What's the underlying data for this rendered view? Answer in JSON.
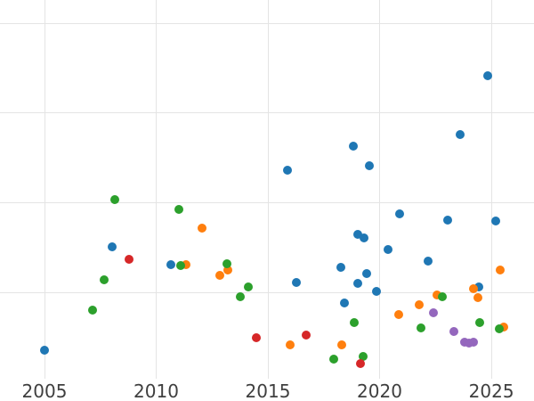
{
  "chart_data": {
    "type": "scatter",
    "title": "",
    "xlabel": "",
    "ylabel": "",
    "grid": true,
    "legend": "none",
    "x_axis": {
      "range": [
        2003.01,
        2026.91
      ],
      "ticks": [
        2005,
        2010,
        2015,
        2020,
        2025
      ],
      "tick_labels": [
        "2005",
        "2010",
        "2015",
        "2020",
        "2025"
      ]
    },
    "y_axis": {
      "range": [
        -0.004,
        4.26
      ],
      "gridline_values": [
        1,
        2,
        3,
        4
      ],
      "tick_labels_visible": false
    },
    "series": [
      {
        "name": "blue",
        "color": "#1f77b4",
        "points": [
          [
            2005.0,
            0.35
          ],
          [
            2008.03,
            1.51
          ],
          [
            2010.66,
            1.31
          ],
          [
            2015.88,
            2.36
          ],
          [
            2016.27,
            1.11
          ],
          [
            2018.27,
            1.28
          ],
          [
            2018.43,
            0.88
          ],
          [
            2018.82,
            2.63
          ],
          [
            2019.02,
            1.65
          ],
          [
            2019.3,
            1.61
          ],
          [
            2019.02,
            1.1
          ],
          [
            2019.42,
            1.21
          ],
          [
            2019.54,
            2.41
          ],
          [
            2019.86,
            1.01
          ],
          [
            2020.38,
            1.48
          ],
          [
            2020.9,
            1.88
          ],
          [
            2022.17,
            1.35
          ],
          [
            2023.05,
            1.81
          ],
          [
            2023.61,
            2.76
          ],
          [
            2024.44,
            1.06
          ],
          [
            2024.84,
            3.42
          ],
          [
            2025.2,
            1.8
          ]
        ]
      },
      {
        "name": "orange",
        "color": "#ff7f0e",
        "points": [
          [
            2011.33,
            1.31
          ],
          [
            2012.05,
            1.72
          ],
          [
            2012.85,
            1.19
          ],
          [
            2013.21,
            1.25
          ],
          [
            2016.0,
            0.41
          ],
          [
            2018.31,
            0.41
          ],
          [
            2020.86,
            0.75
          ],
          [
            2021.77,
            0.86
          ],
          [
            2022.57,
            0.97
          ],
          [
            2024.2,
            1.04
          ],
          [
            2024.4,
            0.94
          ],
          [
            2025.4,
            1.25
          ],
          [
            2025.56,
            0.61
          ]
        ]
      },
      {
        "name": "green",
        "color": "#2ca02c",
        "points": [
          [
            2007.15,
            0.8
          ],
          [
            2007.67,
            1.14
          ],
          [
            2008.15,
            2.03
          ],
          [
            2011.02,
            1.92
          ],
          [
            2011.1,
            1.3
          ],
          [
            2013.17,
            1.32
          ],
          [
            2013.76,
            0.95
          ],
          [
            2014.12,
            1.06
          ],
          [
            2017.95,
            0.25
          ],
          [
            2018.86,
            0.66
          ],
          [
            2019.26,
            0.28
          ],
          [
            2021.85,
            0.6
          ],
          [
            2022.81,
            0.95
          ],
          [
            2024.48,
            0.66
          ],
          [
            2025.36,
            0.59
          ]
        ]
      },
      {
        "name": "red",
        "color": "#d62728",
        "points": [
          [
            2008.78,
            1.37
          ],
          [
            2014.48,
            0.49
          ],
          [
            2016.71,
            0.52
          ],
          [
            2019.14,
            0.21
          ]
        ]
      },
      {
        "name": "purple",
        "color": "#9467bd",
        "points": [
          [
            2022.41,
            0.77
          ],
          [
            2023.33,
            0.56
          ],
          [
            2023.8,
            0.44
          ],
          [
            2024.0,
            0.43
          ],
          [
            2024.2,
            0.44
          ]
        ]
      }
    ]
  },
  "style": {
    "background": "#ffffff",
    "gridline_color": "#e4e4e4",
    "tick_label_color": "#3f3f3f"
  }
}
